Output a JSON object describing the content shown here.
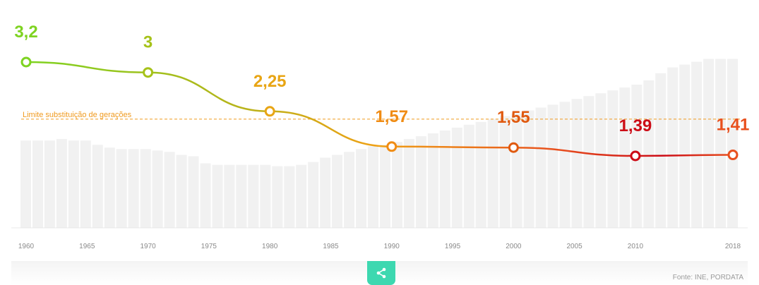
{
  "chart_data": {
    "type": "line",
    "x_range": [
      1960,
      2018
    ],
    "y_range": [
      1.0,
      3.2
    ],
    "grid": false,
    "x_tick_labels": [
      "1960",
      "1965",
      "1970",
      "1975",
      "1980",
      "1985",
      "1990",
      "1995",
      "2000",
      "2005",
      "2010",
      "2018"
    ],
    "series": [
      {
        "points": [
          {
            "x": 1960,
            "y": 3.2
          },
          {
            "x": 1970,
            "y": 3
          },
          {
            "x": 1980,
            "y": 2.25
          },
          {
            "x": 1990,
            "y": 1.57
          },
          {
            "x": 2000,
            "y": 1.55
          },
          {
            "x": 2010,
            "y": 1.39
          },
          {
            "x": 2018,
            "y": 1.41
          }
        ],
        "point_labels": [
          "3,2",
          "3",
          "2,25",
          "1,57",
          "1,55",
          "1,39",
          "1,41"
        ],
        "point_colors": [
          "#7ed321",
          "#a6c219",
          "#e8a514",
          "#f08c14",
          "#e05a10",
          "#cc0b16",
          "#e8501e"
        ]
      }
    ],
    "reference_line": {
      "label": "Limite substituição de gerações",
      "value": 2.1,
      "color": "#f09a1e"
    },
    "background_bars": {
      "color": "#f1f1f1",
      "relative_heights": [
        0.61,
        0.61,
        0.61,
        0.62,
        0.61,
        0.61,
        0.58,
        0.56,
        0.55,
        0.55,
        0.55,
        0.54,
        0.53,
        0.51,
        0.5,
        0.45,
        0.44,
        0.44,
        0.44,
        0.44,
        0.44,
        0.43,
        0.43,
        0.44,
        0.46,
        0.49,
        0.51,
        0.53,
        0.55,
        0.57,
        0.58,
        0.6,
        0.62,
        0.64,
        0.66,
        0.68,
        0.7,
        0.72,
        0.74,
        0.76,
        0.78,
        0.8,
        0.82,
        0.84,
        0.86,
        0.88,
        0.9,
        0.92,
        0.94,
        0.96,
        0.98,
        1.0,
        1.03,
        1.08,
        1.12,
        1.14,
        1.16,
        1.18,
        1.18,
        1.18
      ]
    }
  },
  "footer": {
    "source": "Fonte: INE, PORDATA",
    "share_icon": "share-icon"
  }
}
